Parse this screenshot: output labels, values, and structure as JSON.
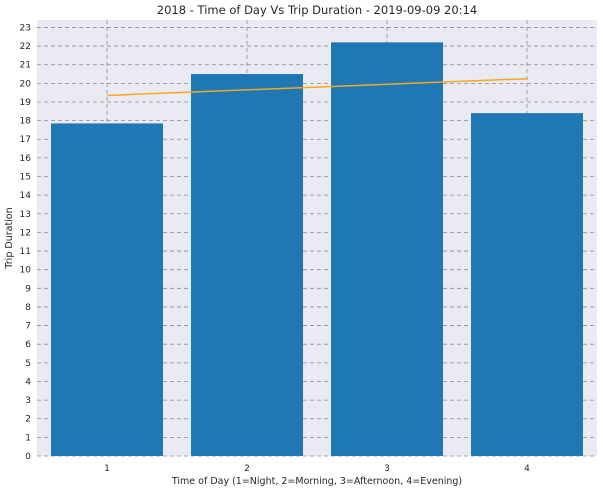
{
  "chart_data": {
    "type": "bar",
    "title": "2018 - Time of Day Vs Trip Duration - 2019-09-09 20:14",
    "xlabel": "Time of Day (1=Night, 2=Morning, 3=Afternoon, 4=Evening)",
    "ylabel": "Trip Duration",
    "categories": [
      "1",
      "2",
      "3",
      "4"
    ],
    "values": [
      17.85,
      20.5,
      22.2,
      18.4
    ],
    "trend_line": {
      "x": [
        "1",
        "4"
      ],
      "y": [
        19.35,
        20.25
      ]
    },
    "ylim": [
      0,
      23.4
    ],
    "yticks": [
      0,
      1,
      2,
      3,
      4,
      5,
      6,
      7,
      8,
      9,
      10,
      11,
      12,
      13,
      14,
      15,
      16,
      17,
      18,
      19,
      20,
      21,
      22,
      23
    ],
    "grid": true,
    "legend": "none"
  },
  "colors": {
    "bar": "#1f77b4",
    "trend": "#f5a623",
    "background": "#eaeaf2",
    "grid": "#8a8a8a"
  }
}
